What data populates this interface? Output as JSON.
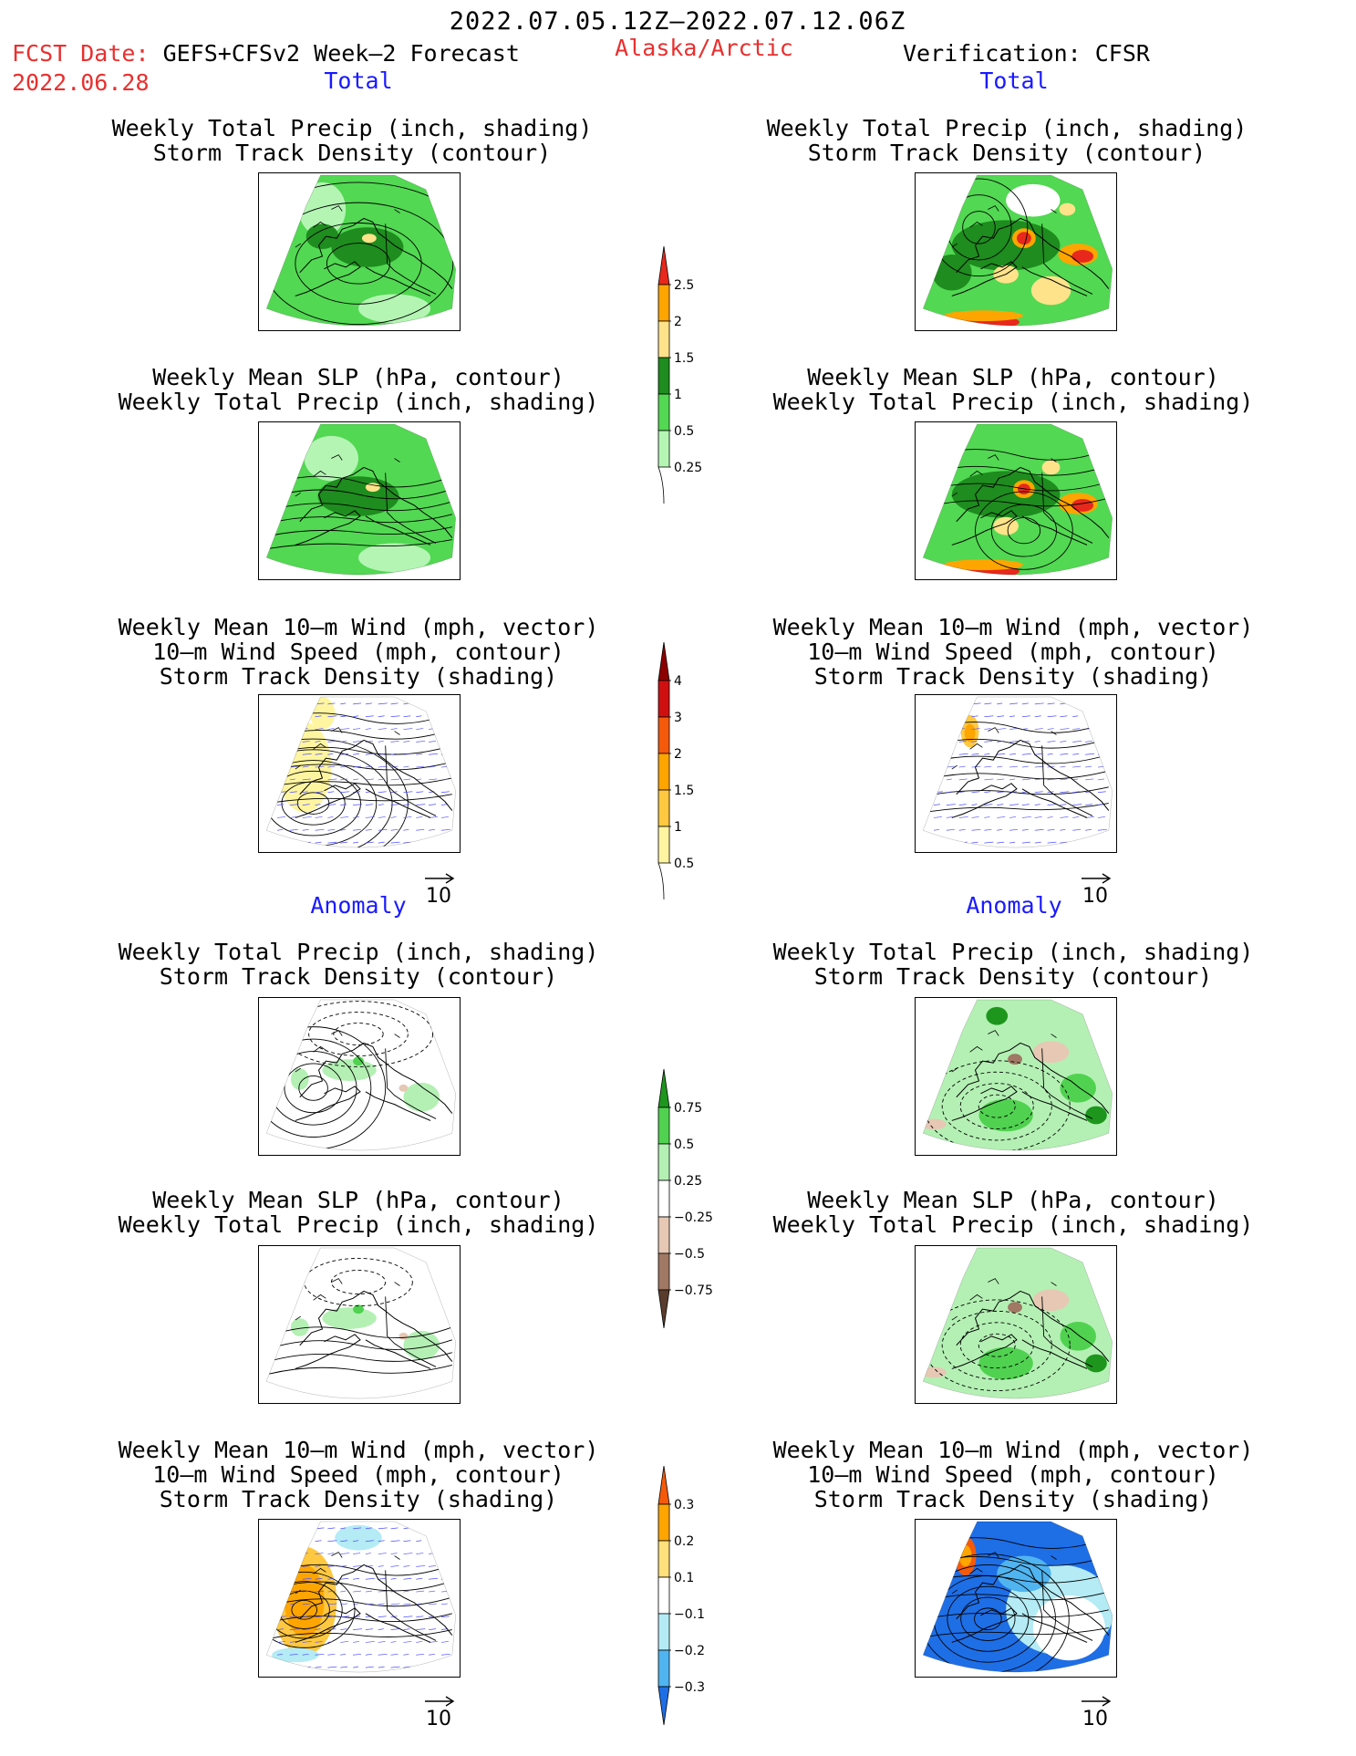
{
  "header": {
    "date_range": "2022.07.05.12Z–2022.07.12.06Z",
    "fcst_date_label": "FCST Date:",
    "fcst_model": "GEFS+CFSv2 Week–2 Forecast",
    "fcst_date": "2022.06.28",
    "region": "Alaska/Arctic",
    "verification": "Verification: CFSR"
  },
  "sections": {
    "total_left": "Total",
    "total_right": "Total",
    "anomaly_left": "Anomaly",
    "anomaly_right": "Anomaly"
  },
  "titles": {
    "precip_storm": [
      "Weekly Total Precip (inch, shading)",
      "Storm Track Density (contour)"
    ],
    "slp_precip": [
      "Weekly Mean SLP (hPa, contour)",
      "Weekly Total Precip (inch, shading)"
    ],
    "wind": [
      "Weekly Mean 10–m Wind (mph, vector)",
      "10–m Wind Speed (mph, contour)",
      "Storm Track Density (shading)"
    ]
  },
  "vector_reference": "10",
  "colorbars": {
    "precip_total": {
      "labels": [
        "2.5",
        "2",
        "1.5",
        "1",
        "0.5",
        "0.25"
      ],
      "colors": [
        "#e8281c",
        "#ffa500",
        "#ffe38a",
        "#1e8c1e",
        "#52d852",
        "#b4f5b4"
      ]
    },
    "storm_total": {
      "labels": [
        "4",
        "3",
        "2",
        "1.5",
        "1",
        "0.5"
      ],
      "colors": [
        "#8c0000",
        "#d01010",
        "#f55a0a",
        "#ffa500",
        "#ffc840",
        "#fff5a0"
      ]
    },
    "precip_anom": {
      "labels": [
        "0.75",
        "0.5",
        "0.25",
        "−0.25",
        "−0.5",
        "−0.75"
      ],
      "colors": [
        "#1e961e",
        "#50d250",
        "#b4f0b4",
        "#ffffff",
        "#e6c8b4",
        "#a07864",
        "#5a3c2d"
      ]
    },
    "storm_anom": {
      "labels": [
        "0.3",
        "0.2",
        "0.1",
        "−0.1",
        "−0.2",
        "−0.3"
      ],
      "colors": [
        "#f55a0a",
        "#ffa500",
        "#ffe07a",
        "#ffffff",
        "#b4ebf5",
        "#50b4f0",
        "#1e6ee6"
      ]
    }
  }
}
